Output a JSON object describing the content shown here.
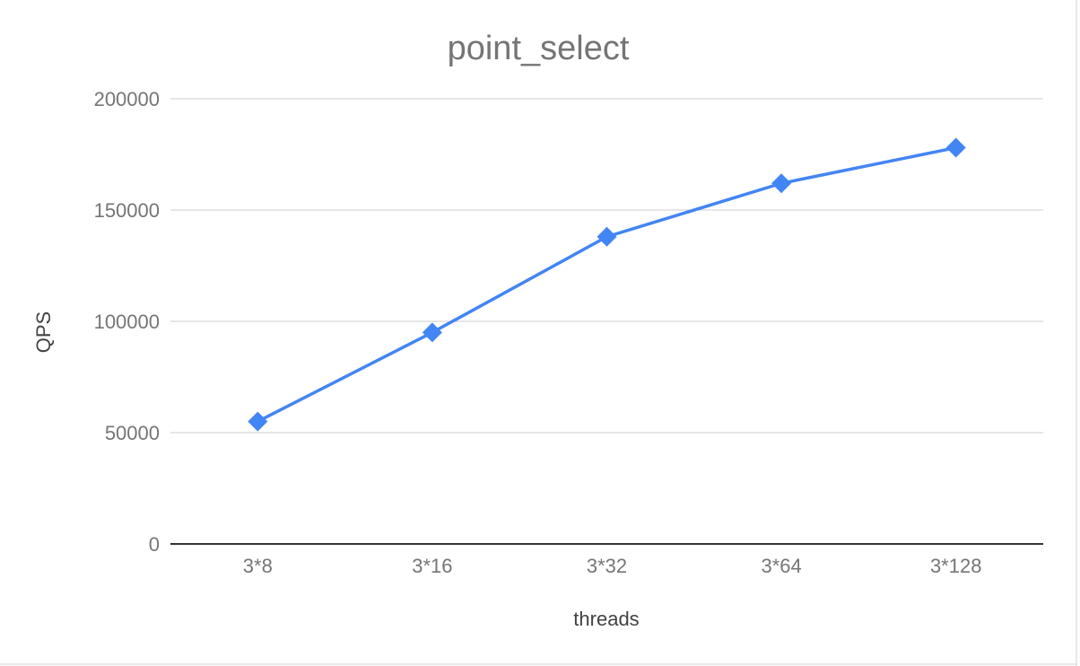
{
  "chart_data": {
    "type": "line",
    "title": "point_select",
    "xlabel": "threads",
    "ylabel": "QPS",
    "categories": [
      "3*8",
      "3*16",
      "3*32",
      "3*64",
      "3*128"
    ],
    "series": [
      {
        "values": [
          55000,
          95000,
          138000,
          162000,
          178000
        ],
        "color": "#4285f4",
        "marker": "diamond"
      }
    ],
    "ylim": [
      0,
      200000
    ],
    "yticks": [
      "0",
      "50000",
      "100000",
      "150000",
      "200000"
    ],
    "grid": true,
    "legend": "none"
  }
}
